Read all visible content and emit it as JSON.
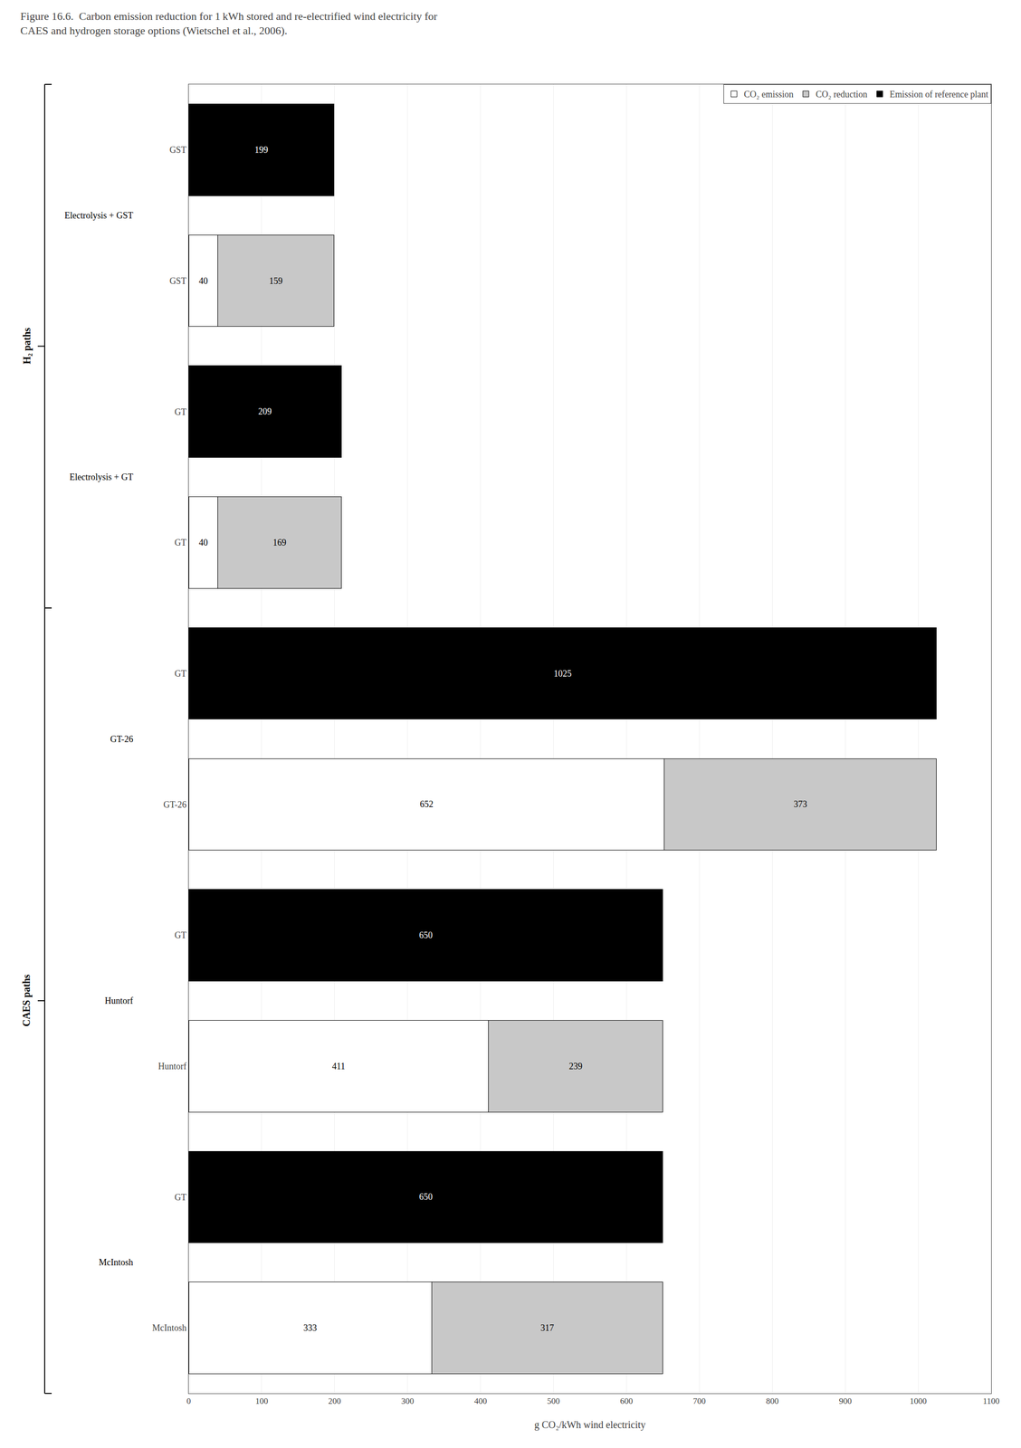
{
  "chart_data": {
    "type": "bar",
    "orientation": "horizontal",
    "stacked": true,
    "data_labels": true,
    "grid": true,
    "legend": "upper right",
    "title": "Figure 16.6.  Carbon emission reduction for 1 kWh stored and re-electrified wind electricity for\nCAES and hydrogen storage options (Wietschel et al., 2006).",
    "xlabel": "g CO₂/kWh wind electricity",
    "categories": [
      "GST",
      "GST",
      "GT",
      "GT",
      "GT",
      "GT-26",
      "GT",
      "Huntorf",
      "GT",
      "McIntosh"
    ],
    "series": [
      {
        "name": "CO₂ emission",
        "color": "#ffffff",
        "values": [
          null,
          40,
          null,
          40,
          null,
          652,
          null,
          411,
          null,
          333
        ]
      },
      {
        "name": "CO₂ reduction",
        "color": "#c8c8c8",
        "values": [
          null,
          159,
          null,
          169,
          null,
          373,
          null,
          239,
          null,
          317
        ]
      },
      {
        "name": "Emission of reference plant",
        "color": "#000000",
        "values": [
          199,
          null,
          209,
          null,
          1025,
          null,
          650,
          null,
          650,
          null
        ]
      }
    ],
    "groups": [
      {
        "label": "Electrolysis + GST",
        "categories": [
          0,
          1
        ]
      },
      {
        "label": "Electrolysis + GT",
        "categories": [
          2,
          3
        ]
      },
      {
        "label": "GT-26",
        "categories": [
          4,
          5
        ]
      },
      {
        "label": "Huntorf",
        "categories": [
          6,
          7
        ]
      },
      {
        "label": "McIntosh",
        "categories": [
          8,
          9
        ]
      }
    ],
    "brackets": [
      {
        "label": "H₂ paths",
        "categories": [
          0,
          3
        ]
      },
      {
        "label": "CAES paths",
        "categories": [
          4,
          9
        ]
      }
    ],
    "xlim": [
      0,
      1100
    ],
    "xticks": [
      0,
      100,
      200,
      300,
      400,
      500,
      600,
      700,
      800,
      900,
      1000,
      1100
    ]
  }
}
